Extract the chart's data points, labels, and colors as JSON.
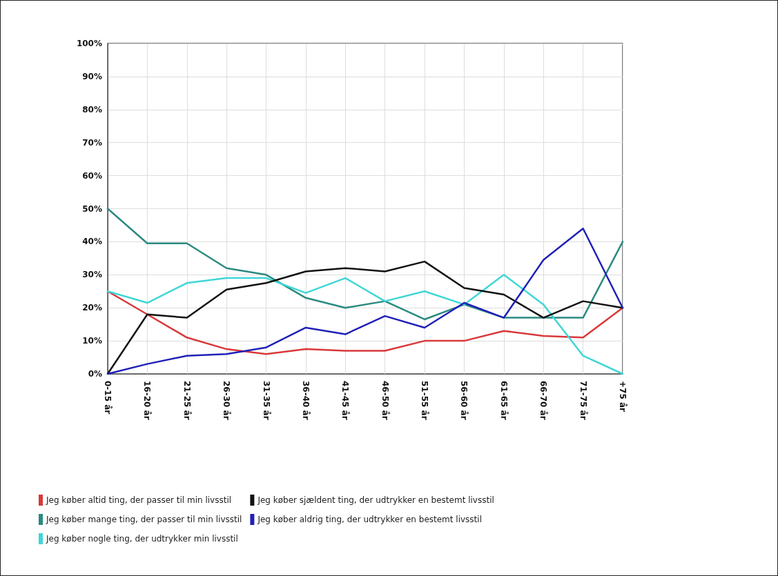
{
  "chart_data": {
    "type": "line",
    "categories": [
      "0-15 år",
      "16-20 år",
      "21-25 år",
      "26-30 år",
      "31-35 år",
      "36-40 år",
      "41-45 år",
      "46-50 år",
      "51-55 år",
      "56-60 år",
      "61-65 år",
      "66-70 år",
      "71-75 år",
      "+75 år"
    ],
    "series": [
      {
        "name": "Jeg køber altid ting, der passer til min livsstil",
        "color": "#d9383a",
        "values": [
          25,
          18,
          11,
          7.5,
          6,
          7.5,
          7,
          7,
          10,
          10,
          13,
          11.5,
          11,
          20
        ]
      },
      {
        "name": "Jeg køber mange ting, der passer til min livsstil",
        "color": "#2a8a80",
        "values": [
          50,
          39.5,
          39.5,
          32,
          30,
          23,
          20,
          22,
          16.5,
          21,
          17,
          17,
          17,
          40
        ]
      },
      {
        "name": "Jeg køber nogle ting, der udtrykker min livsstil",
        "color": "#3fd6d6",
        "values": [
          25,
          21.5,
          27.5,
          29,
          29,
          24.5,
          29,
          22,
          25,
          21,
          30,
          21,
          5.5,
          0
        ]
      },
      {
        "name": "Jeg køber sjældent ting, der udtrykker en bestemt livsstil",
        "color": "#111111",
        "values": [
          0,
          18,
          17,
          25.5,
          27.5,
          31,
          32,
          31,
          34,
          26,
          24,
          17,
          22,
          20
        ]
      },
      {
        "name": "Jeg køber aldrig ting, der udtrykker en bestemt livsstil",
        "color": "#2020b8",
        "values": [
          0,
          3,
          5.5,
          6,
          8,
          14,
          12,
          17.5,
          14,
          21.5,
          17,
          34.5,
          44,
          20
        ]
      }
    ],
    "ylim": [
      0,
      100
    ],
    "yticks": [
      {
        "value": 0,
        "label": "0%"
      },
      {
        "value": 10,
        "label": "10%"
      },
      {
        "value": 20,
        "label": "20%"
      },
      {
        "value": 30,
        "label": "30%"
      },
      {
        "value": 40,
        "label": "40%"
      },
      {
        "value": 50,
        "label": "50%"
      },
      {
        "value": 60,
        "label": "60%"
      },
      {
        "value": 70,
        "label": "70%"
      },
      {
        "value": 80,
        "label": "80%"
      },
      {
        "value": 90,
        "label": "90%"
      },
      {
        "value": 100,
        "label": "100%"
      }
    ],
    "grid": true,
    "legend": "bottom",
    "marker": "none",
    "line_style": "solid"
  }
}
